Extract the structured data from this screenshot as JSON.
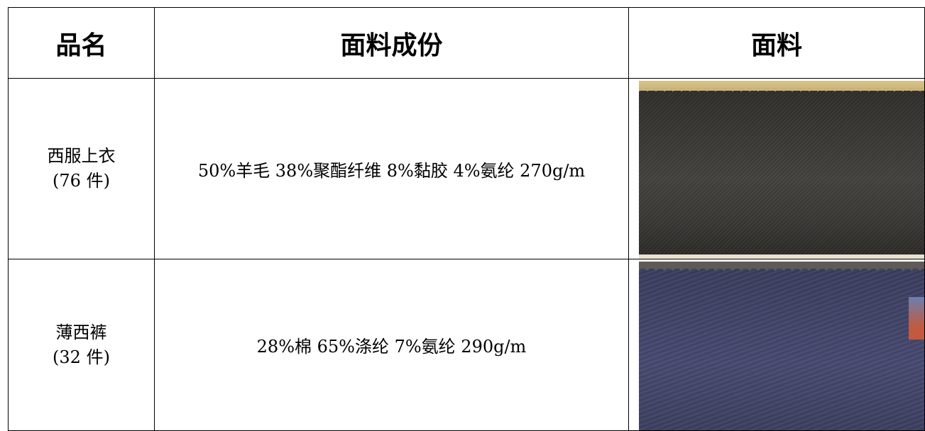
{
  "table": {
    "headers": [
      "品名",
      "面料成份",
      "面料"
    ],
    "rows": [
      {
        "name_line1": "西服上衣",
        "name_line2": "(76 件)",
        "composition": "50%羊毛 38%聚酯纤维 8%黏胶 4%氨纶  270g/m",
        "swatch_color": "#3b3935"
      },
      {
        "name_line1": "薄西裤",
        "name_line2": "(32 件)",
        "composition": "28%棉 65%涤纶 7%氨纶  290g/m",
        "swatch_color": "#42456a"
      }
    ]
  }
}
